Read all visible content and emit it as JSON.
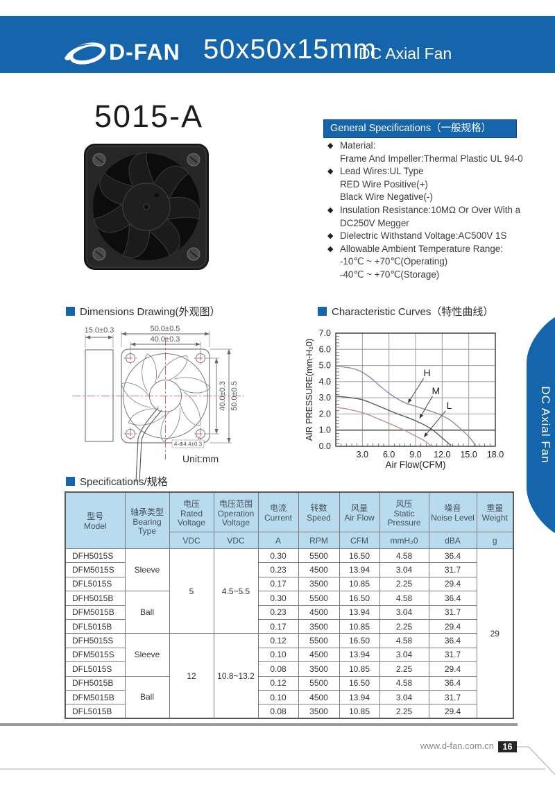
{
  "colors": {
    "brand_blue": "#1565ac",
    "table_header_bg": "#b8dcee",
    "curve_h": "#8a8ab8",
    "curve_m": "#5a5a60",
    "curve_l": "#c48f8f",
    "drawing_red": "#cc4444",
    "page_box": "#262626"
  },
  "header": {
    "brand": "D-FAN",
    "title": "50x50x15mm",
    "subtitle": "DC Axial Fan"
  },
  "model_title": "5015-A",
  "side_tab_label": "DC Axial Fan",
  "general_specs": {
    "title": "General Specifications（一般规格）",
    "lines": [
      {
        "d": "◆",
        "t": "Material:"
      },
      {
        "d": "",
        "t": "Frame And Impeller:Thermal Plastic UL 94-0"
      },
      {
        "d": "◆",
        "t": "Lead Wires:UL Type"
      },
      {
        "d": "",
        "t": "RED Wire Positive(+)"
      },
      {
        "d": "",
        "t": "Black Wire Negative(-)"
      },
      {
        "d": "◆",
        "t": "Insulation Resistance:10MΩ Or Over With a"
      },
      {
        "d": "",
        "t": "DC250V Megger"
      },
      {
        "d": "◆",
        "t": "Dielectric Withstand Voltage:AC500V 1S"
      },
      {
        "d": "◆",
        "t": "Allowable Ambient Temperature Range:"
      },
      {
        "d": "",
        "t": "-10℃ ~ +70℃(Operating)"
      },
      {
        "d": "",
        "t": "-40℃ ~ +70℃(Storage)"
      }
    ]
  },
  "dimensions": {
    "title": "Dimensions Drawing(外观图）",
    "depth": "15.0±0.3",
    "outer_width": "50.0±0.5",
    "hole_pitch_width": "40.0±0.3",
    "hole_pitch_height": "40.0±0.3",
    "outer_height": "50.0±0.5",
    "hole_callout": "4-Φ4.4±0.3",
    "unit": "Unit:mm"
  },
  "curves_title": "Characteristic Curves（特性曲线）",
  "chart_data": {
    "type": "line",
    "title": "Characteristic Curves（特性曲线）",
    "xlabel": "Air Flow(CFM)",
    "ylabel": "AIR PRESSURE(mm-H₂0)",
    "xlim": [
      0,
      18
    ],
    "ylim": [
      0,
      7
    ],
    "xticks": [
      3.0,
      6.0,
      9.0,
      12.0,
      15.0,
      18.0
    ],
    "yticks": [
      0.0,
      1.0,
      2.0,
      3.0,
      4.0,
      5.0,
      6.0,
      7.0
    ],
    "x_minor_step": 0.6,
    "y_minor_step": 0.2,
    "grid": true,
    "emphasis_gridline_y": 1.0,
    "legend_position": "inline-annotations",
    "series": [
      {
        "name": "H",
        "color": "#8a8ab8",
        "points": [
          [
            0,
            4.95
          ],
          [
            1,
            4.9
          ],
          [
            2,
            4.8
          ],
          [
            3,
            4.58
          ],
          [
            4,
            4.2
          ],
          [
            5,
            3.72
          ],
          [
            6,
            3.28
          ],
          [
            7,
            2.92
          ],
          [
            8,
            2.65
          ],
          [
            9,
            2.48
          ],
          [
            10,
            2.3
          ],
          [
            11,
            2.12
          ],
          [
            12,
            1.9
          ],
          [
            13,
            1.58
          ],
          [
            14,
            1.12
          ],
          [
            15,
            0.6
          ],
          [
            15.8,
            0.05
          ]
        ]
      },
      {
        "name": "M",
        "color": "#5a5a60",
        "points": [
          [
            0,
            3.1
          ],
          [
            1,
            3.05
          ],
          [
            2,
            2.98
          ],
          [
            3,
            2.88
          ],
          [
            4,
            2.68
          ],
          [
            5,
            2.45
          ],
          [
            6,
            2.22
          ],
          [
            7,
            2.0
          ],
          [
            8,
            1.8
          ],
          [
            9,
            1.58
          ],
          [
            10,
            1.32
          ],
          [
            11,
            0.98
          ],
          [
            12,
            0.52
          ],
          [
            13,
            0.05
          ]
        ]
      },
      {
        "name": "L",
        "color": "#c48f8f",
        "points": [
          [
            0,
            2.4
          ],
          [
            1,
            2.34
          ],
          [
            2,
            2.22
          ],
          [
            3,
            2.08
          ],
          [
            4,
            1.88
          ],
          [
            5,
            1.65
          ],
          [
            6,
            1.42
          ],
          [
            7,
            1.18
          ],
          [
            8,
            0.92
          ],
          [
            9,
            0.64
          ],
          [
            10,
            0.34
          ],
          [
            10.8,
            0.0
          ]
        ]
      }
    ],
    "annotations": [
      {
        "label": "H",
        "at": [
          10.3,
          4.5
        ],
        "tip": [
          8.0,
          2.6
        ]
      },
      {
        "label": "M",
        "at": [
          11.3,
          3.4
        ],
        "tip": [
          9.3,
          1.65
        ]
      },
      {
        "label": "L",
        "at": [
          12.8,
          2.5
        ],
        "tip": [
          9.8,
          0.5
        ]
      }
    ]
  },
  "spec_table": {
    "title": "Specifications/规格",
    "headers": [
      {
        "cn": "型号",
        "en": "Model"
      },
      {
        "cn": "轴承类型",
        "en": "Bearing Type"
      },
      {
        "cn": "电压",
        "en": "Rated Voltage"
      },
      {
        "cn": "电压范围",
        "en": "Operation Voltage"
      },
      {
        "cn": "电流",
        "en": "Current"
      },
      {
        "cn": "转数",
        "en": "Speed"
      },
      {
        "cn": "风量",
        "en": "Air Flow"
      },
      {
        "cn": "风压",
        "en": "Static Pressure"
      },
      {
        "cn": "噪音",
        "en": "Noise Level"
      },
      {
        "cn": "重量",
        "en": "Weight"
      }
    ],
    "units": [
      "VDC",
      "VDC",
      "A",
      "RPM",
      "CFM",
      "mmH₂0",
      "dBA",
      "g"
    ],
    "groups": {
      "bearing_a": "Sleeve",
      "bearing_b": "Ball",
      "bearing_c": "Sleeve",
      "bearing_d": "Ball",
      "rated_a": "5",
      "rated_b": "12",
      "op_a": "4.5~5.5",
      "op_b": "10.8~13.2",
      "weight": "29"
    },
    "rows": [
      {
        "model": "DFH5015S",
        "current": "0.30",
        "speed": "5500",
        "airflow": "16.50",
        "pressure": "4.58",
        "noise": "36.4"
      },
      {
        "model": "DFM5015S",
        "current": "0.23",
        "speed": "4500",
        "airflow": "13.94",
        "pressure": "3.04",
        "noise": "31.7"
      },
      {
        "model": "DFL5015S",
        "current": "0.17",
        "speed": "3500",
        "airflow": "10.85",
        "pressure": "2.25",
        "noise": "29.4"
      },
      {
        "model": "DFH5015B",
        "current": "0.30",
        "speed": "5500",
        "airflow": "16.50",
        "pressure": "4.58",
        "noise": "36.4"
      },
      {
        "model": "DFM5015B",
        "current": "0.23",
        "speed": "4500",
        "airflow": "13.94",
        "pressure": "3.04",
        "noise": "31.7"
      },
      {
        "model": "DFL5015B",
        "current": "0.17",
        "speed": "3500",
        "airflow": "10.85",
        "pressure": "2.25",
        "noise": "29.4"
      },
      {
        "model": "DFH5015S",
        "current": "0.12",
        "speed": "5500",
        "airflow": "16.50",
        "pressure": "4.58",
        "noise": "36.4"
      },
      {
        "model": "DFM5015S",
        "current": "0.10",
        "speed": "4500",
        "airflow": "13.94",
        "pressure": "3.04",
        "noise": "31.7"
      },
      {
        "model": "DFL5015S",
        "current": "0.08",
        "speed": "3500",
        "airflow": "10.85",
        "pressure": "2.25",
        "noise": "29.4"
      },
      {
        "model": "DFH5015B",
        "current": "0.12",
        "speed": "5500",
        "airflow": "16.50",
        "pressure": "4.58",
        "noise": "36.4"
      },
      {
        "model": "DFM5015B",
        "current": "0.10",
        "speed": "4500",
        "airflow": "13.94",
        "pressure": "3.04",
        "noise": "31.7"
      },
      {
        "model": "DFL5015B",
        "current": "0.08",
        "speed": "3500",
        "airflow": "10.85",
        "pressure": "2.25",
        "noise": "29.4"
      }
    ]
  },
  "footer": {
    "website": "www.d-fan.com.cn",
    "page": "16"
  }
}
